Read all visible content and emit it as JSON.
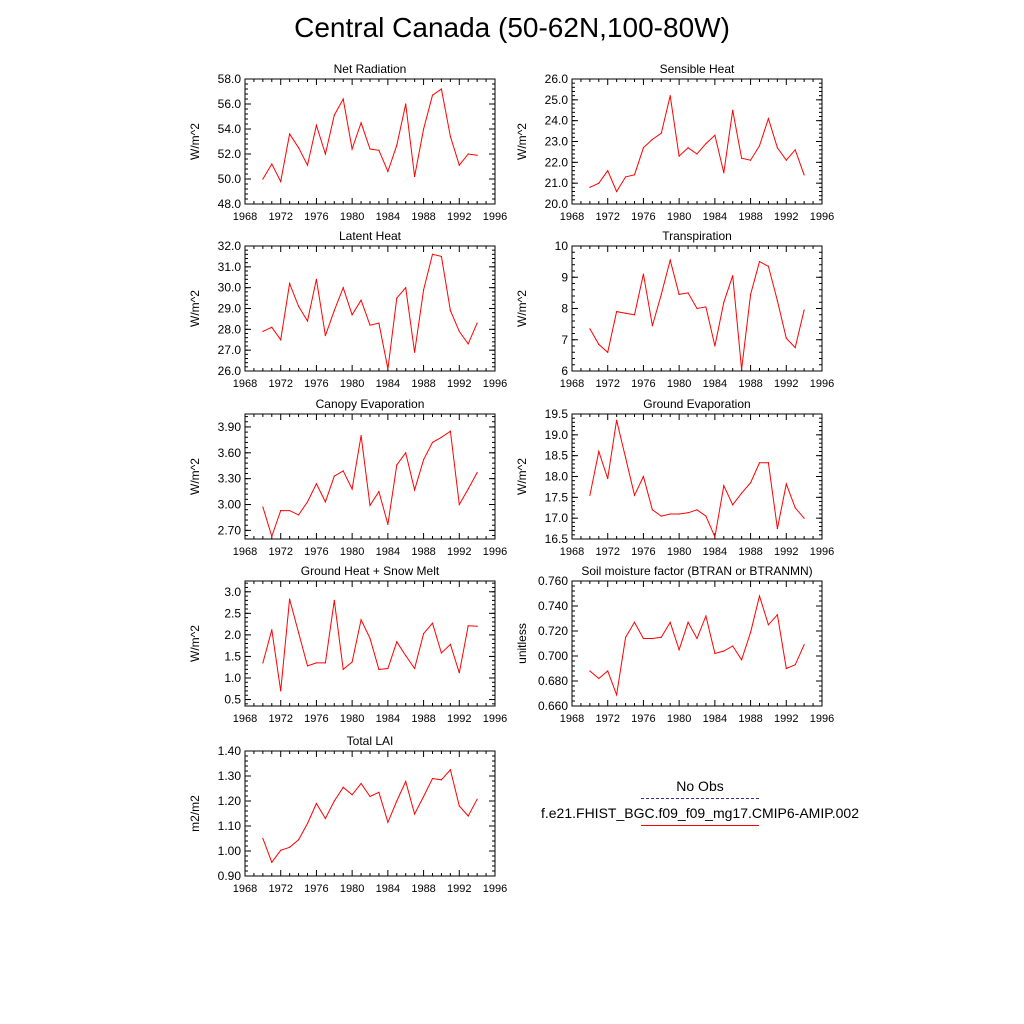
{
  "figure": {
    "title": "Central Canada (50-62N,100-80W)"
  },
  "legend": {
    "entries": [
      {
        "label": "No Obs",
        "style": "dashed",
        "color": "#3a2c8a"
      },
      {
        "label": "f.e21.FHIST_BGC.f09_f09_mg17.CMIP6-AMIP.002",
        "style": "solid",
        "color": "#ff0000"
      }
    ]
  },
  "colors": {
    "series": "#ff0000",
    "axis": "#000000"
  },
  "chart_data": [
    {
      "type": "line",
      "title": "Net Radiation",
      "ylabel": "W/m^2",
      "xlim": [
        1968,
        1996
      ],
      "ylim": [
        48.0,
        58.0
      ],
      "xticks": [
        "1968",
        "1972",
        "1976",
        "1980",
        "1984",
        "1988",
        "1992",
        "1996"
      ],
      "yticks": [
        "48.0",
        "50.0",
        "52.0",
        "54.0",
        "56.0",
        "58.0"
      ],
      "x": [
        1970,
        1971,
        1972,
        1973,
        1974,
        1975,
        1976,
        1977,
        1978,
        1979,
        1980,
        1981,
        1982,
        1983,
        1984,
        1985,
        1986,
        1987,
        1988,
        1989,
        1990,
        1991,
        1992,
        1993,
        1994
      ],
      "series": [
        {
          "values": [
            50.0,
            51.2,
            49.8,
            53.6,
            52.5,
            51.1,
            54.3,
            52.0,
            55.1,
            56.4,
            52.4,
            54.5,
            52.4,
            52.3,
            50.6,
            52.7,
            56.0,
            50.2,
            54.0,
            56.7,
            57.2,
            53.4,
            51.1,
            52.0,
            51.9
          ]
        }
      ]
    },
    {
      "type": "line",
      "title": "Sensible Heat",
      "ylabel": "W/m^2",
      "xlim": [
        1968,
        1996
      ],
      "ylim": [
        20.0,
        26.0
      ],
      "xticks": [
        "1968",
        "1972",
        "1976",
        "1980",
        "1984",
        "1988",
        "1992",
        "1996"
      ],
      "yticks": [
        "20.0",
        "21.0",
        "22.0",
        "23.0",
        "24.0",
        "25.0",
        "26.0"
      ],
      "x": [
        1970,
        1971,
        1972,
        1973,
        1974,
        1975,
        1976,
        1977,
        1978,
        1979,
        1980,
        1981,
        1982,
        1983,
        1984,
        1985,
        1986,
        1987,
        1988,
        1989,
        1990,
        1991,
        1992,
        1993,
        1994
      ],
      "series": [
        {
          "values": [
            20.8,
            21.0,
            21.6,
            20.6,
            21.3,
            21.4,
            22.7,
            23.1,
            23.4,
            25.2,
            22.3,
            22.7,
            22.4,
            22.9,
            23.3,
            21.5,
            24.5,
            22.2,
            22.1,
            22.8,
            24.1,
            22.7,
            22.1,
            22.6,
            21.4
          ]
        }
      ]
    },
    {
      "type": "line",
      "title": "Latent Heat",
      "ylabel": "W/m^2",
      "xlim": [
        1968,
        1996
      ],
      "ylim": [
        26.0,
        32.0
      ],
      "xticks": [
        "1968",
        "1972",
        "1976",
        "1980",
        "1984",
        "1988",
        "1992",
        "1996"
      ],
      "yticks": [
        "26.0",
        "27.0",
        "28.0",
        "29.0",
        "30.0",
        "31.0",
        "32.0"
      ],
      "x": [
        1970,
        1971,
        1972,
        1973,
        1974,
        1975,
        1976,
        1977,
        1978,
        1979,
        1980,
        1981,
        1982,
        1983,
        1984,
        1985,
        1986,
        1987,
        1988,
        1989,
        1990,
        1991,
        1992,
        1993,
        1994
      ],
      "series": [
        {
          "values": [
            27.9,
            28.1,
            27.5,
            30.2,
            29.1,
            28.4,
            30.4,
            27.7,
            28.9,
            30.0,
            28.7,
            29.4,
            28.2,
            28.3,
            26.1,
            29.5,
            30.0,
            26.9,
            29.9,
            31.6,
            31.5,
            28.9,
            27.9,
            27.3,
            28.3
          ]
        }
      ]
    },
    {
      "type": "line",
      "title": "Transpiration",
      "ylabel": "W/m^2",
      "xlim": [
        1968,
        1996
      ],
      "ylim": [
        6,
        10
      ],
      "xticks": [
        "1968",
        "1972",
        "1976",
        "1980",
        "1984",
        "1988",
        "1992",
        "1996"
      ],
      "yticks": [
        "6",
        "7",
        "8",
        "9",
        "10"
      ],
      "x": [
        1970,
        1971,
        1972,
        1973,
        1974,
        1975,
        1976,
        1977,
        1978,
        1979,
        1980,
        1981,
        1982,
        1983,
        1984,
        1985,
        1986,
        1987,
        1988,
        1989,
        1990,
        1991,
        1992,
        1993,
        1994
      ],
      "series": [
        {
          "values": [
            7.35,
            6.85,
            6.6,
            7.9,
            7.85,
            7.8,
            9.1,
            7.45,
            8.45,
            9.55,
            8.45,
            8.5,
            8.0,
            8.05,
            6.8,
            8.2,
            9.05,
            6.05,
            8.45,
            9.5,
            9.35,
            8.25,
            7.05,
            6.75,
            7.95
          ]
        }
      ]
    },
    {
      "type": "line",
      "title": "Canopy Evaporation",
      "ylabel": "W/m^2",
      "xlim": [
        1968,
        1996
      ],
      "ylim": [
        2.6,
        4.05
      ],
      "xticks": [
        "1968",
        "1972",
        "1976",
        "1980",
        "1984",
        "1988",
        "1992",
        "1996"
      ],
      "yticks": [
        "2.70",
        "3.00",
        "3.30",
        "3.60",
        "3.90"
      ],
      "x": [
        1970,
        1971,
        1972,
        1973,
        1974,
        1975,
        1976,
        1977,
        1978,
        1979,
        1980,
        1981,
        1982,
        1983,
        1984,
        1985,
        1986,
        1987,
        1988,
        1989,
        1990,
        1991,
        1992,
        1993,
        1994
      ],
      "series": [
        {
          "values": [
            2.97,
            2.63,
            2.93,
            2.93,
            2.88,
            3.03,
            3.24,
            3.03,
            3.33,
            3.39,
            3.18,
            3.8,
            2.99,
            3.15,
            2.77,
            3.46,
            3.6,
            3.17,
            3.52,
            3.72,
            3.78,
            3.85,
            3.0,
            3.18,
            3.37
          ]
        }
      ]
    },
    {
      "type": "line",
      "title": "Ground Evaporation",
      "ylabel": "W/m^2",
      "xlim": [
        1968,
        1996
      ],
      "ylim": [
        16.5,
        19.5
      ],
      "xticks": [
        "1968",
        "1972",
        "1976",
        "1980",
        "1984",
        "1988",
        "1992",
        "1996"
      ],
      "yticks": [
        "16.5",
        "17.0",
        "17.5",
        "18.0",
        "18.5",
        "19.0",
        "19.5"
      ],
      "x": [
        1970,
        1971,
        1972,
        1973,
        1974,
        1975,
        1976,
        1977,
        1978,
        1979,
        1980,
        1981,
        1982,
        1983,
        1984,
        1985,
        1986,
        1987,
        1988,
        1989,
        1990,
        1991,
        1992,
        1993,
        1994
      ],
      "series": [
        {
          "values": [
            17.55,
            18.6,
            17.95,
            19.35,
            18.45,
            17.55,
            18.0,
            17.2,
            17.05,
            17.1,
            17.1,
            17.13,
            17.2,
            17.05,
            16.55,
            17.78,
            17.32,
            17.6,
            17.85,
            18.33,
            18.33,
            16.75,
            17.82,
            17.25,
            17.0
          ]
        }
      ]
    },
    {
      "type": "line",
      "title": "Ground Heat + Snow Melt",
      "ylabel": "W/m^2",
      "xlim": [
        1968,
        1996
      ],
      "ylim": [
        0.35,
        3.25
      ],
      "xticks": [
        "1968",
        "1972",
        "1976",
        "1980",
        "1984",
        "1988",
        "1992",
        "1996"
      ],
      "yticks": [
        "0.5",
        "1.0",
        "1.5",
        "2.0",
        "2.5",
        "3.0"
      ],
      "x": [
        1970,
        1971,
        1972,
        1973,
        1974,
        1975,
        1976,
        1977,
        1978,
        1979,
        1980,
        1981,
        1982,
        1983,
        1984,
        1985,
        1986,
        1987,
        1988,
        1989,
        1990,
        1991,
        1992,
        1993,
        1994
      ],
      "series": [
        {
          "values": [
            1.35,
            2.12,
            0.7,
            2.83,
            2.05,
            1.28,
            1.35,
            1.35,
            2.8,
            1.2,
            1.37,
            2.35,
            1.92,
            1.2,
            1.22,
            1.84,
            1.52,
            1.22,
            2.03,
            2.27,
            1.58,
            1.78,
            1.12,
            2.21,
            2.2
          ]
        }
      ]
    },
    {
      "type": "line",
      "title": "Soil moisture factor (BTRAN or BTRANMN)",
      "ylabel": "unitless",
      "xlim": [
        1968,
        1996
      ],
      "ylim": [
        0.66,
        0.76
      ],
      "xticks": [
        "1968",
        "1972",
        "1976",
        "1980",
        "1984",
        "1988",
        "1992",
        "1996"
      ],
      "yticks": [
        "0.660",
        "0.680",
        "0.700",
        "0.720",
        "0.740",
        "0.760"
      ],
      "x": [
        1970,
        1971,
        1972,
        1973,
        1974,
        1975,
        1976,
        1977,
        1978,
        1979,
        1980,
        1981,
        1982,
        1983,
        1984,
        1985,
        1986,
        1987,
        1988,
        1989,
        1990,
        1991,
        1992,
        1993,
        1994
      ],
      "series": [
        {
          "values": [
            0.688,
            0.682,
            0.688,
            0.669,
            0.715,
            0.727,
            0.714,
            0.714,
            0.715,
            0.727,
            0.705,
            0.727,
            0.714,
            0.732,
            0.702,
            0.704,
            0.708,
            0.697,
            0.719,
            0.748,
            0.725,
            0.733,
            0.69,
            0.693,
            0.709
          ]
        }
      ]
    },
    {
      "type": "line",
      "title": "Total LAI",
      "ylabel": "m2/m2",
      "xlim": [
        1968,
        1996
      ],
      "ylim": [
        0.9,
        1.4
      ],
      "xticks": [
        "1968",
        "1972",
        "1976",
        "1980",
        "1984",
        "1988",
        "1992",
        "1996"
      ],
      "yticks": [
        "0.90",
        "1.00",
        "1.10",
        "1.20",
        "1.30",
        "1.40"
      ],
      "x": [
        1970,
        1971,
        1972,
        1973,
        1974,
        1975,
        1976,
        1977,
        1978,
        1979,
        1980,
        1981,
        1982,
        1983,
        1984,
        1985,
        1986,
        1987,
        1988,
        1989,
        1990,
        1991,
        1992,
        1993,
        1994
      ],
      "series": [
        {
          "values": [
            1.05,
            0.955,
            1.003,
            1.015,
            1.045,
            1.11,
            1.19,
            1.13,
            1.2,
            1.255,
            1.225,
            1.27,
            1.218,
            1.235,
            1.115,
            1.2,
            1.278,
            1.148,
            1.218,
            1.29,
            1.285,
            1.325,
            1.18,
            1.14,
            1.207
          ]
        }
      ]
    }
  ]
}
